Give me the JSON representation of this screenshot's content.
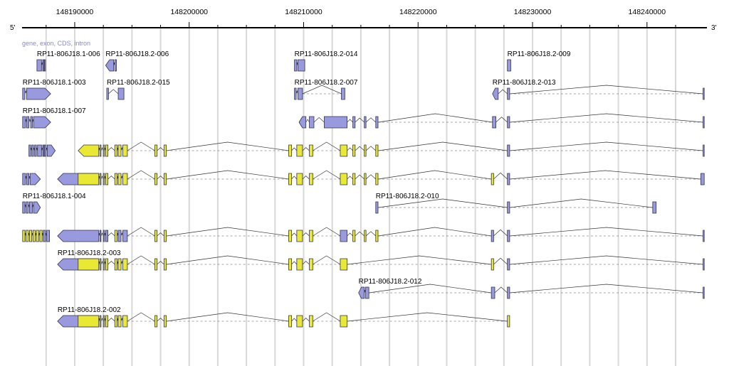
{
  "ruler": {
    "left_end": "5'",
    "right_end": "3'",
    "min": 148185400,
    "max": 148245050,
    "ticks": [
      148190000,
      148200000,
      148210000,
      148220000,
      148230000,
      148240000
    ],
    "tick_labels": [
      "148190000",
      "148200000",
      "148210000",
      "148220000",
      "148230000",
      "148240000"
    ],
    "minor_ticks": [
      148187500,
      148192500,
      148195000,
      148197500,
      148202500,
      148205000,
      148207500,
      148212500,
      148215000,
      148217500,
      148222500,
      148225000,
      148227500,
      148232500,
      148235000,
      148237500,
      148242500
    ]
  },
  "legend": {
    "text": "gene, exon, CDS, intron"
  },
  "colors": {
    "exon": "#9999dd",
    "cds": "#e8e835",
    "outline": "#33334d",
    "intron": "#333333",
    "grid": "#d8d8d8"
  },
  "tracks": [
    {
      "row": 0,
      "label": "RP11-806J18.1-006",
      "strand": "+",
      "exons": [
        [
          148186700,
          148187100
        ],
        [
          148187200,
          148187300
        ],
        [
          148187350,
          148187450
        ]
      ],
      "cds": []
    },
    {
      "row": 0,
      "label": "RP11-806J18.2-006",
      "strand": "-",
      "exons": [
        [
          148192700,
          148193400
        ],
        [
          148193500,
          148193650
        ]
      ],
      "cds": []
    },
    {
      "row": 0,
      "label": "RP11-806J18.2-014",
      "strand": "-",
      "exons": [
        [
          148209200,
          148209400
        ],
        [
          148209500,
          148210100
        ]
      ],
      "cds": []
    },
    {
      "row": 0,
      "label": "RP11-806J18.2-009",
      "strand": "-",
      "exons": [
        [
          148227800,
          148228100
        ]
      ],
      "cds": []
    },
    {
      "row": 1,
      "label": "RP11-806J18.1-003",
      "strand": "+",
      "exons": [
        [
          148185450,
          148185650
        ],
        [
          148185800,
          148187900
        ]
      ],
      "cds": []
    },
    {
      "row": 1,
      "label": "RP11-806J18.2-015",
      "strand": "-",
      "exons": [
        [
          148192800,
          148192950
        ],
        [
          148193800,
          148194300
        ]
      ],
      "cds": []
    },
    {
      "row": 1,
      "label": "RP11-806J18.2-007",
      "strand": "-",
      "exons": [
        [
          148209200,
          148209350
        ],
        [
          148209500,
          148209900
        ],
        [
          148213300,
          148213600
        ]
      ],
      "cds": []
    },
    {
      "row": 1,
      "label": "RP11-806J18.2-013",
      "strand": "-",
      "exons": [
        [
          148226500,
          148227000
        ],
        [
          148227800,
          148228000
        ],
        [
          148244900,
          148245000
        ]
      ],
      "cds": []
    },
    {
      "row": 2,
      "label": "RP11-806J18.1-007",
      "strand": "+",
      "exons": [
        [
          148185450,
          148185700
        ],
        [
          148185800,
          148186000
        ],
        [
          148186150,
          148186300
        ],
        [
          148186400,
          148187900
        ]
      ],
      "cds": []
    },
    {
      "row": 2,
      "label": "",
      "strand": "-",
      "exons": [
        [
          148209600,
          148210200
        ],
        [
          148210500,
          148210900
        ],
        [
          148211800,
          148213800
        ],
        [
          148214300,
          148214500
        ],
        [
          148215300,
          148215450
        ],
        [
          148216300,
          148216500
        ],
        [
          148226500,
          148226800
        ],
        [
          148227800,
          148228000
        ],
        [
          148244900,
          148245000
        ]
      ],
      "cds": []
    },
    {
      "row": 3,
      "label": "",
      "strand": "+",
      "exons": [
        [
          148186000,
          148186150
        ],
        [
          148186250,
          148186400
        ],
        [
          148186500,
          148186650
        ],
        [
          148186750,
          148187100
        ],
        [
          148187200,
          148187300
        ],
        [
          148187350,
          148187500
        ],
        [
          148187600,
          148188300
        ]
      ],
      "cds": []
    },
    {
      "row": 3,
      "label": "",
      "strand": "-",
      "exons": [
        [
          148190300,
          148192100
        ],
        [
          148192200,
          148192300
        ],
        [
          148192500,
          148192600
        ],
        [
          148192700,
          148192900
        ],
        [
          148193500,
          148193700
        ],
        [
          148193800,
          148194050
        ],
        [
          148194200,
          148194600
        ],
        [
          148197000,
          148197200
        ],
        [
          148197800,
          148198000
        ],
        [
          148208700,
          148208950
        ],
        [
          148209400,
          148209900
        ],
        [
          148210500,
          148210800
        ],
        [
          148213200,
          148213800
        ],
        [
          148214300,
          148214500
        ],
        [
          148215300,
          148215450
        ],
        [
          148216300,
          148216500
        ],
        [
          148227800,
          148228000
        ],
        [
          148244900,
          148245000
        ]
      ],
      "cds": [
        [
          148190300,
          148192100
        ],
        [
          148192200,
          148192300
        ],
        [
          148192500,
          148192600
        ],
        [
          148192700,
          148192900
        ],
        [
          148193500,
          148193700
        ],
        [
          148193800,
          148194050
        ],
        [
          148194200,
          148194600
        ],
        [
          148197000,
          148197200
        ],
        [
          148197800,
          148198000
        ],
        [
          148208700,
          148208950
        ],
        [
          148209400,
          148209900
        ],
        [
          148210500,
          148210800
        ],
        [
          148213200,
          148213800
        ],
        [
          148214300,
          148214500
        ],
        [
          148215300,
          148215450
        ],
        [
          148216300,
          148216500
        ]
      ]
    },
    {
      "row": 4,
      "label": "",
      "strand": "+",
      "exons": [
        [
          148185450,
          148185700
        ],
        [
          148185800,
          148186000
        ],
        [
          148186100,
          148187000
        ]
      ],
      "cds": []
    },
    {
      "row": 4,
      "label": "",
      "strand": "-",
      "exons": [
        [
          148188500,
          148192100
        ],
        [
          148192200,
          148192300
        ],
        [
          148192500,
          148192600
        ],
        [
          148192700,
          148192900
        ],
        [
          148193500,
          148193700
        ],
        [
          148193800,
          148194050
        ],
        [
          148194200,
          148194600
        ],
        [
          148197000,
          148197200
        ],
        [
          148197800,
          148198000
        ],
        [
          148208700,
          148208950
        ],
        [
          148209400,
          148209900
        ],
        [
          148210500,
          148210800
        ],
        [
          148213200,
          148213800
        ],
        [
          148214300,
          148214500
        ],
        [
          148215300,
          148215450
        ],
        [
          148216300,
          148216500
        ],
        [
          148226400,
          148226600
        ],
        [
          148227800,
          148228000
        ],
        [
          148244700,
          148245000
        ]
      ],
      "cds": [
        [
          148190300,
          148192100
        ],
        [
          148192200,
          148192300
        ],
        [
          148192500,
          148192600
        ],
        [
          148192700,
          148192900
        ],
        [
          148193500,
          148193700
        ],
        [
          148193800,
          148194050
        ],
        [
          148194200,
          148194600
        ],
        [
          148197000,
          148197200
        ],
        [
          148197800,
          148198000
        ],
        [
          148208700,
          148208950
        ],
        [
          148209400,
          148209900
        ],
        [
          148210500,
          148210800
        ],
        [
          148213200,
          148213800
        ],
        [
          148214300,
          148214500
        ],
        [
          148215300,
          148215450
        ],
        [
          148216300,
          148216500
        ],
        [
          148226400,
          148226600
        ]
      ]
    },
    {
      "row": 5,
      "label": "RP11-806J18.1-004",
      "strand": "+",
      "exons": [
        [
          148185450,
          148185650
        ],
        [
          148185750,
          148185950
        ],
        [
          148186050,
          148186300
        ],
        [
          148186400,
          148187000
        ]
      ],
      "cds": []
    },
    {
      "row": 5,
      "label": "RP11-806J18.2-010",
      "strand": "-",
      "exons": [
        [
          148216300,
          148216500
        ],
        [
          148227800,
          148228000
        ],
        [
          148240500,
          148240800
        ]
      ],
      "cds": []
    },
    {
      "row": 6,
      "label": "",
      "strand": "+",
      "exons": [
        [
          148185450,
          148185650
        ],
        [
          148185750,
          148185950
        ],
        [
          148186050,
          148186250
        ],
        [
          148186350,
          148186550
        ],
        [
          148186650,
          148186850
        ],
        [
          148186950,
          148187150
        ],
        [
          148187250,
          148187450
        ],
        [
          148187550,
          148187800
        ]
      ],
      "cds": [
        [
          148185450,
          148185650
        ],
        [
          148185750,
          148185950
        ],
        [
          148186050,
          148186250
        ],
        [
          148186350,
          148186550
        ],
        [
          148186650,
          148186850
        ],
        [
          148186950,
          148187150
        ]
      ]
    },
    {
      "row": 6,
      "label": "",
      "strand": "-",
      "exons": [
        [
          148188500,
          148192100
        ],
        [
          148192200,
          148192300
        ],
        [
          148192500,
          148192600
        ],
        [
          148192700,
          148192900
        ],
        [
          148193500,
          148193700
        ],
        [
          148193800,
          148194050
        ],
        [
          148194200,
          148194600
        ],
        [
          148197000,
          148197200
        ],
        [
          148197800,
          148198000
        ],
        [
          148208700,
          148208950
        ],
        [
          148209400,
          148209900
        ],
        [
          148210500,
          148210800
        ],
        [
          148213200,
          148213800
        ],
        [
          148214300,
          148214500
        ],
        [
          148215300,
          148215450
        ],
        [
          148216300,
          148216500
        ],
        [
          148226400,
          148226600
        ],
        [
          148227800,
          148228000
        ],
        [
          148244900,
          148245000
        ]
      ],
      "cds": [
        [
          148193500,
          148193700
        ],
        [
          148197000,
          148197200
        ],
        [
          148197800,
          148198000
        ],
        [
          148208700,
          148208950
        ],
        [
          148209400,
          148209900
        ],
        [
          148210500,
          148210800
        ],
        [
          148214300,
          148214500
        ],
        [
          148215300,
          148215450
        ],
        [
          148216300,
          148216500
        ]
      ]
    },
    {
      "row": 7,
      "label": "RP11-806J18.2-003",
      "strand": "-",
      "exons": [
        [
          148188500,
          148192100
        ],
        [
          148192200,
          148192300
        ],
        [
          148192500,
          148192600
        ],
        [
          148192700,
          148192900
        ],
        [
          148193500,
          148193700
        ],
        [
          148193800,
          148194050
        ],
        [
          148194200,
          148194600
        ],
        [
          148197000,
          148197200
        ],
        [
          148197800,
          148198000
        ],
        [
          148208700,
          148208950
        ],
        [
          148209400,
          148209900
        ],
        [
          148210500,
          148210800
        ],
        [
          148213200,
          148213800
        ],
        [
          148226400,
          148226600
        ],
        [
          148227800,
          148228000
        ],
        [
          148244900,
          148245000
        ]
      ],
      "cds": [
        [
          148190300,
          148192100
        ],
        [
          148192200,
          148192300
        ],
        [
          148192500,
          148192600
        ],
        [
          148192700,
          148192900
        ],
        [
          148193500,
          148193700
        ],
        [
          148193800,
          148194050
        ],
        [
          148194200,
          148194600
        ],
        [
          148197000,
          148197200
        ],
        [
          148197800,
          148198000
        ],
        [
          148208700,
          148208950
        ],
        [
          148209400,
          148209900
        ],
        [
          148210500,
          148210800
        ],
        [
          148213200,
          148213800
        ],
        [
          148226400,
          148226600
        ]
      ]
    },
    {
      "row": 8,
      "label": "RP11-806J18.2-012",
      "strand": "-",
      "exons": [
        [
          148214800,
          148215300
        ],
        [
          148215400,
          148215700
        ],
        [
          148226400,
          148226700
        ],
        [
          148227800,
          148228000
        ],
        [
          148244900,
          148245000
        ]
      ],
      "cds": []
    },
    {
      "row": 9,
      "label": "RP11-806J18.2-002",
      "strand": "-",
      "exons": [
        [
          148188500,
          148192100
        ],
        [
          148192200,
          148192300
        ],
        [
          148192500,
          148192600
        ],
        [
          148192700,
          148192900
        ],
        [
          148193500,
          148193700
        ],
        [
          148193800,
          148194050
        ],
        [
          148194200,
          148194600
        ],
        [
          148197000,
          148197200
        ],
        [
          148197800,
          148198000
        ],
        [
          148208700,
          148208950
        ],
        [
          148209400,
          148209900
        ],
        [
          148210500,
          148210800
        ],
        [
          148213200,
          148213800
        ],
        [
          148227800,
          148228000
        ]
      ],
      "cds": [
        [
          148190300,
          148192100
        ],
        [
          148192200,
          148192300
        ],
        [
          148192500,
          148192600
        ],
        [
          148192700,
          148192900
        ],
        [
          148193500,
          148193700
        ],
        [
          148193800,
          148194050
        ],
        [
          148194200,
          148194600
        ],
        [
          148197000,
          148197200
        ],
        [
          148197800,
          148198000
        ],
        [
          148208700,
          148208950
        ],
        [
          148209400,
          148209900
        ],
        [
          148210500,
          148210800
        ],
        [
          148213200,
          148213800
        ],
        [
          148227800,
          148228000
        ]
      ]
    }
  ]
}
